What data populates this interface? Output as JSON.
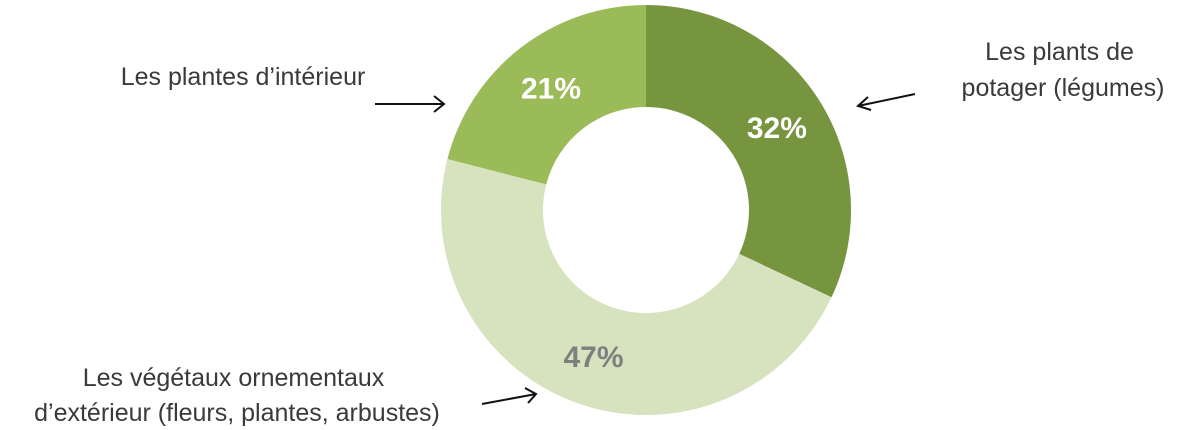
{
  "chart_data": {
    "type": "pie",
    "variant": "donut",
    "title": "",
    "slices": [
      {
        "label_lines": [
          "Les plants de",
          "potager (légumes)"
        ],
        "value": 32,
        "value_label": "32%",
        "color": "#77953f",
        "text_color": "#ffffff"
      },
      {
        "label_lines": [
          "Les végétaux ornementaux",
          "d’extérieur (fleurs, plantes, arbustes)"
        ],
        "value": 47,
        "value_label": "47%",
        "color": "#d7e3bf",
        "text_color": "#7f7f7f"
      },
      {
        "label_lines": [
          "Les plantes d’intérieur"
        ],
        "value": 21,
        "value_label": "21%",
        "color": "#9bbb59",
        "text_color": "#ffffff"
      }
    ],
    "start": "12 o'clock",
    "direction": "clockwise",
    "legend": "callout labels with arrows"
  }
}
